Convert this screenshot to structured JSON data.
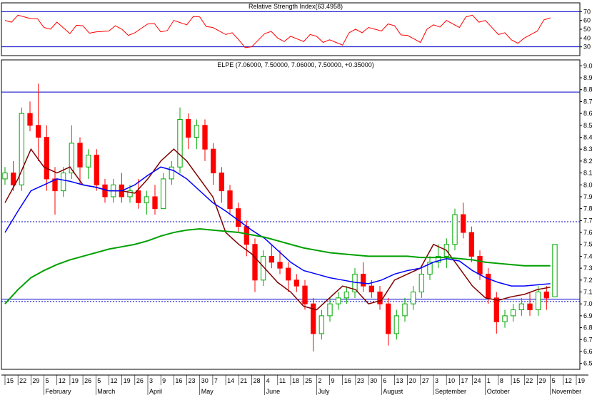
{
  "rsi": {
    "title": "Relative Strength Index(63.4958)",
    "value": 63.4958,
    "ylim": [
      20,
      80
    ],
    "levels": [
      70,
      30
    ],
    "ticks": [
      70,
      60,
      50,
      40,
      30
    ],
    "color": "#ff0000"
  },
  "price": {
    "title": "ELPE (7.06000, 7.50000, 7.06000, 7.50000, +0.35000)",
    "ylim": [
      6.45,
      9.05
    ],
    "ticks": [
      9.0,
      8.9,
      8.8,
      8.7,
      8.6,
      8.5,
      8.4,
      8.3,
      8.2,
      8.1,
      8.0,
      7.9,
      7.8,
      7.7,
      7.6,
      7.5,
      7.4,
      7.3,
      7.2,
      7.1,
      7.0,
      6.9,
      6.8,
      6.7,
      6.6,
      6.5
    ],
    "hlines": [
      {
        "value": 8.78,
        "style": "solid",
        "color": "#0000cc"
      },
      {
        "value": 7.69,
        "style": "dotted",
        "color": "#0000cc"
      },
      {
        "value": 7.04,
        "style": "solid",
        "color": "#0000cc"
      },
      {
        "value": 7.02,
        "style": "dotted",
        "color": "#0000cc"
      }
    ],
    "colors": {
      "up": "#00aa00",
      "down": "#ff0000",
      "ma_short": "#800000",
      "ma_mid": "#0000ff",
      "ma_long": "#00a000"
    }
  },
  "x_axis": {
    "day_labels": [
      "15",
      "22",
      "29",
      "5",
      "12",
      "19",
      "26",
      "5",
      "12",
      "19",
      "26",
      "3",
      "9",
      "16",
      "23",
      "30",
      "7",
      "14",
      "21",
      "28",
      "4",
      "11",
      "18",
      "25",
      "2",
      "9",
      "16",
      "23",
      "30",
      "6",
      "13",
      "20",
      "27",
      "3",
      "10",
      "17",
      "24",
      "1",
      "8",
      "15",
      "22",
      "29",
      "5",
      "12",
      "19"
    ],
    "months": [
      {
        "label": "February",
        "index": 3
      },
      {
        "label": "March",
        "index": 7
      },
      {
        "label": "April",
        "index": 11
      },
      {
        "label": "May",
        "index": 15
      },
      {
        "label": "June",
        "index": 20
      },
      {
        "label": "July",
        "index": 24
      },
      {
        "label": "August",
        "index": 29
      },
      {
        "label": "September",
        "index": 33
      },
      {
        "label": "October",
        "index": 37
      },
      {
        "label": "November",
        "index": 42
      }
    ]
  },
  "chart_data": {
    "type": "line",
    "series": [
      {
        "name": "RSI",
        "x_week": [
          0,
          1,
          2,
          3,
          4,
          5,
          6,
          7,
          8,
          9,
          10,
          11,
          12,
          13,
          14,
          15,
          16,
          17,
          18,
          19,
          20,
          21,
          22,
          23,
          24,
          25,
          26,
          27,
          28,
          29,
          30,
          31,
          32,
          33,
          34,
          35,
          36,
          37,
          38,
          39,
          40,
          41,
          42
        ],
        "values": [
          60,
          66,
          62,
          52,
          58,
          45,
          54,
          47,
          48,
          50,
          46,
          56,
          47,
          60,
          55,
          64,
          52,
          44,
          38,
          30,
          45,
          40,
          42,
          36,
          42,
          38,
          32,
          50,
          52,
          48,
          54,
          43,
          35,
          55,
          60,
          52,
          66,
          60,
          44,
          38,
          40,
          48,
          63
        ]
      },
      {
        "name": "Close",
        "x_week": [
          0,
          1,
          2,
          3,
          4,
          5,
          6,
          7,
          8,
          9,
          10,
          11,
          12,
          13,
          14,
          15,
          16,
          17,
          18,
          19,
          20,
          21,
          22,
          23,
          24,
          25,
          26,
          27,
          28,
          29,
          30,
          31,
          32,
          33,
          34,
          35,
          36,
          37,
          38,
          39,
          40,
          41,
          42
        ],
        "values": [
          8.05,
          8.6,
          8.45,
          8.1,
          7.95,
          8.2,
          7.95,
          7.85,
          7.95,
          7.9,
          7.8,
          8.05,
          8.55,
          8.4,
          8.3,
          7.95,
          7.75,
          7.55,
          7.15,
          7.4,
          7.3,
          7.2,
          6.95,
          6.75,
          6.95,
          7.1,
          7.2,
          7.1,
          6.75,
          7.05,
          7.25,
          7.3,
          7.6,
          7.85,
          7.55,
          7.35,
          7.05,
          6.85,
          6.95,
          7.0,
          7.05,
          7.15,
          7.5
        ]
      },
      {
        "name": "MA short",
        "x_week": [
          0,
          1,
          2,
          3,
          4,
          5,
          6,
          7,
          8,
          9,
          10,
          11,
          12,
          13,
          14,
          15,
          16,
          17,
          18,
          19,
          20,
          21,
          22,
          23,
          24,
          25,
          26,
          27,
          28,
          29,
          30,
          31,
          32,
          33,
          34,
          35,
          36,
          37,
          38,
          39,
          40,
          41,
          42
        ],
        "values": [
          7.85,
          8.05,
          8.3,
          8.15,
          8.1,
          8.15,
          8.0,
          7.98,
          7.95,
          7.95,
          7.93,
          8.05,
          8.2,
          8.3,
          8.2,
          8.05,
          7.9,
          7.6,
          7.5,
          7.42,
          7.3,
          7.18,
          7.1,
          6.98,
          6.95,
          7.05,
          7.15,
          7.12,
          7.0,
          7.03,
          7.2,
          7.25,
          7.3,
          7.5,
          7.45,
          7.3,
          7.15,
          7.05,
          7.03,
          7.06,
          7.08,
          7.12,
          7.14
        ]
      },
      {
        "name": "MA mid",
        "x_week": [
          0,
          1,
          2,
          3,
          4,
          5,
          6,
          7,
          8,
          9,
          10,
          11,
          12,
          13,
          14,
          15,
          16,
          17,
          18,
          19,
          20,
          21,
          22,
          23,
          24,
          25,
          26,
          27,
          28,
          29,
          30,
          31,
          32,
          33,
          34,
          35,
          36,
          37,
          38,
          39,
          40,
          41,
          42
        ],
        "values": [
          7.6,
          7.78,
          7.95,
          8.0,
          8.05,
          8.03,
          8.0,
          7.98,
          7.95,
          7.95,
          8.0,
          8.08,
          8.15,
          8.12,
          8.05,
          7.95,
          7.85,
          7.78,
          7.7,
          7.62,
          7.55,
          7.45,
          7.35,
          7.28,
          7.25,
          7.22,
          7.2,
          7.18,
          7.17,
          7.2,
          7.25,
          7.28,
          7.3,
          7.35,
          7.38,
          7.36,
          7.28,
          7.22,
          7.18,
          7.15,
          7.15,
          7.16,
          7.17
        ]
      },
      {
        "name": "MA long",
        "x_week": [
          0,
          1,
          2,
          3,
          4,
          5,
          6,
          7,
          8,
          9,
          10,
          11,
          12,
          13,
          14,
          15,
          16,
          17,
          18,
          19,
          20,
          21,
          22,
          23,
          24,
          25,
          26,
          27,
          28,
          29,
          30,
          31,
          32,
          33,
          34,
          35,
          36,
          37,
          38,
          39,
          40,
          41,
          42
        ],
        "values": [
          7.0,
          7.12,
          7.22,
          7.28,
          7.33,
          7.37,
          7.4,
          7.43,
          7.46,
          7.48,
          7.5,
          7.53,
          7.57,
          7.6,
          7.62,
          7.63,
          7.62,
          7.61,
          7.6,
          7.58,
          7.56,
          7.53,
          7.5,
          7.47,
          7.45,
          7.43,
          7.42,
          7.41,
          7.4,
          7.4,
          7.4,
          7.4,
          7.39,
          7.39,
          7.39,
          7.38,
          7.37,
          7.35,
          7.34,
          7.33,
          7.32,
          7.32,
          7.32
        ]
      }
    ],
    "candles": [
      [
        8.05,
        8.15,
        8.0,
        8.1
      ],
      [
        8.1,
        8.2,
        7.95,
        8.0
      ],
      [
        8.0,
        8.65,
        7.95,
        8.6
      ],
      [
        8.6,
        8.7,
        8.45,
        8.5
      ],
      [
        8.5,
        8.85,
        8.2,
        8.4
      ],
      [
        8.4,
        8.5,
        7.95,
        8.05
      ],
      [
        8.05,
        8.15,
        7.75,
        7.95
      ],
      [
        7.95,
        8.15,
        7.9,
        8.1
      ],
      [
        8.1,
        8.5,
        8.05,
        8.35
      ],
      [
        8.35,
        8.4,
        8.0,
        8.15
      ],
      [
        8.15,
        8.3,
        8.05,
        8.25
      ],
      [
        8.25,
        8.3,
        7.95,
        8.0
      ],
      [
        8.0,
        8.05,
        7.85,
        7.9
      ],
      [
        7.9,
        8.05,
        7.85,
        8.0
      ],
      [
        8.0,
        8.1,
        7.85,
        7.9
      ],
      [
        7.9,
        8.0,
        7.85,
        7.95
      ],
      [
        7.95,
        8.05,
        7.8,
        7.85
      ],
      [
        7.85,
        7.95,
        7.75,
        7.9
      ],
      [
        7.9,
        8.0,
        7.75,
        7.8
      ],
      [
        7.8,
        8.1,
        7.8,
        8.05
      ],
      [
        8.05,
        8.2,
        8.0,
        8.15
      ],
      [
        8.15,
        8.65,
        8.1,
        8.55
      ],
      [
        8.55,
        8.6,
        8.3,
        8.4
      ],
      [
        8.4,
        8.55,
        8.3,
        8.5
      ],
      [
        8.5,
        8.55,
        8.2,
        8.3
      ],
      [
        8.3,
        8.35,
        8.0,
        8.1
      ],
      [
        8.1,
        8.15,
        7.85,
        7.95
      ],
      [
        7.95,
        8.0,
        7.75,
        7.8
      ],
      [
        7.8,
        7.85,
        7.6,
        7.65
      ],
      [
        7.65,
        7.7,
        7.4,
        7.5
      ],
      [
        7.5,
        7.55,
        7.1,
        7.2
      ],
      [
        7.2,
        7.45,
        7.15,
        7.4
      ],
      [
        7.4,
        7.5,
        7.3,
        7.35
      ],
      [
        7.35,
        7.45,
        7.25,
        7.3
      ],
      [
        7.3,
        7.35,
        7.1,
        7.2
      ],
      [
        7.2,
        7.25,
        7.1,
        7.15
      ],
      [
        7.15,
        7.2,
        6.95,
        7.0
      ],
      [
        7.0,
        7.05,
        6.6,
        6.75
      ],
      [
        6.75,
        6.95,
        6.7,
        6.9
      ],
      [
        6.9,
        7.05,
        6.85,
        7.0
      ],
      [
        7.0,
        7.1,
        6.95,
        7.05
      ],
      [
        7.05,
        7.15,
        7.0,
        7.1
      ],
      [
        7.1,
        7.3,
        7.05,
        7.25
      ],
      [
        7.25,
        7.35,
        7.1,
        7.15
      ],
      [
        7.15,
        7.2,
        7.05,
        7.1
      ],
      [
        7.1,
        7.15,
        6.95,
        7.0
      ],
      [
        7.0,
        7.05,
        6.65,
        6.75
      ],
      [
        6.75,
        6.95,
        6.7,
        6.9
      ],
      [
        6.9,
        7.05,
        6.85,
        7.0
      ],
      [
        7.0,
        7.15,
        6.95,
        7.1
      ],
      [
        7.1,
        7.3,
        7.05,
        7.25
      ],
      [
        7.25,
        7.4,
        7.2,
        7.35
      ],
      [
        7.35,
        7.5,
        7.3,
        7.4
      ],
      [
        7.4,
        7.55,
        7.3,
        7.5
      ],
      [
        7.5,
        7.8,
        7.45,
        7.75
      ],
      [
        7.75,
        7.85,
        7.55,
        7.6
      ],
      [
        7.6,
        7.65,
        7.35,
        7.4
      ],
      [
        7.4,
        7.45,
        7.2,
        7.25
      ],
      [
        7.25,
        7.3,
        7.0,
        7.05
      ],
      [
        7.05,
        7.1,
        6.75,
        6.85
      ],
      [
        6.85,
        6.95,
        6.8,
        6.9
      ],
      [
        6.9,
        7.0,
        6.85,
        6.95
      ],
      [
        6.95,
        7.05,
        6.9,
        7.0
      ],
      [
        7.0,
        7.1,
        6.9,
        6.95
      ],
      [
        6.95,
        7.15,
        6.9,
        7.1
      ],
      [
        7.1,
        7.15,
        6.95,
        7.05
      ],
      [
        7.06,
        7.5,
        7.06,
        7.5
      ]
    ]
  }
}
